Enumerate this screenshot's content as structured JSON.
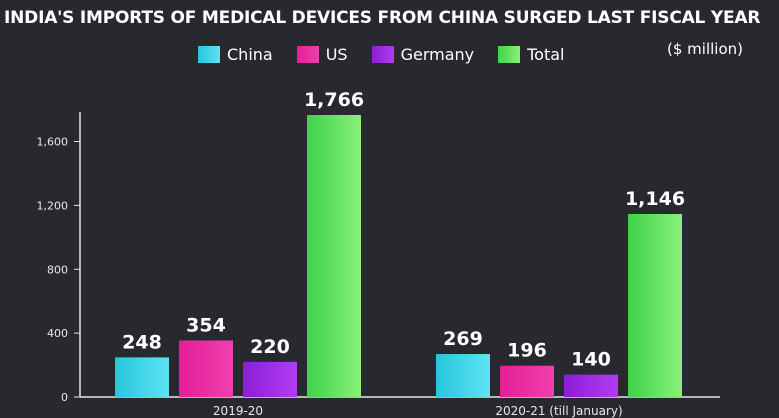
{
  "chart_data": {
    "type": "bar",
    "title": "INDIA'S IMPORTS OF MEDICAL DEVICES FROM CHINA SURGED LAST FISCAL YEAR",
    "unit": "($ million)",
    "categories": [
      "2019-20",
      "2020-21 (till January)"
    ],
    "series": [
      {
        "name": "China",
        "values": [
          248,
          269
        ],
        "color": "#27c6dd",
        "color_light": "#5fe3f3"
      },
      {
        "name": "US",
        "values": [
          354,
          196
        ],
        "color": "#e41e96",
        "color_light": "#f040b0"
      },
      {
        "name": "Germany",
        "values": [
          220,
          140
        ],
        "color": "#8b1ed6",
        "color_light": "#b03df2"
      },
      {
        "name": "Total",
        "values": [
          1766,
          1146
        ],
        "color": "#3fd34a",
        "color_light": "#8af07a"
      }
    ],
    "value_labels": [
      [
        "248",
        "354",
        "220",
        "1,766"
      ],
      [
        "269",
        "196",
        "140",
        "1,146"
      ]
    ],
    "yticks": [
      0,
      400,
      800,
      1200,
      1600
    ],
    "ytick_labels": [
      "0",
      "400",
      "800",
      "1,200",
      "1,600"
    ],
    "ylim": [
      0,
      1766
    ],
    "xlabel": "",
    "ylabel": "",
    "grid": false,
    "legend_position": "top"
  }
}
